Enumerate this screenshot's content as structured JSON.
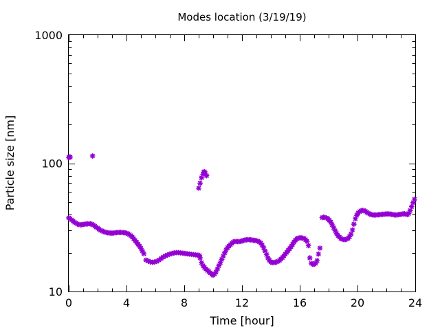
{
  "chart_data": {
    "type": "scatter",
    "title": "Modes location (3/19/19)",
    "xlabel": "Time [hour]",
    "ylabel": "Particle size [nm]",
    "xlim": [
      0,
      24
    ],
    "ylim": [
      10,
      1000
    ],
    "y_scale": "log",
    "grid": false,
    "marker_color": "#9400D3",
    "x_ticks": [
      0,
      4,
      8,
      12,
      16,
      20,
      24
    ],
    "y_ticks": [
      10,
      100,
      1000
    ],
    "x_tick_labels": [
      "0",
      "4",
      "8",
      "12",
      "16",
      "20",
      "24"
    ],
    "y_tick_labels": [
      "10",
      "100",
      "1000"
    ],
    "series": [
      {
        "points": [
          [
            0.0,
            37.5
          ],
          [
            0.1,
            37.0
          ],
          [
            0.2,
            36.2
          ],
          [
            0.3,
            35.4
          ],
          [
            0.4,
            34.7
          ],
          [
            0.5,
            34.2
          ],
          [
            0.6,
            33.6
          ],
          [
            0.7,
            33.3
          ],
          [
            0.8,
            33.1
          ],
          [
            0.9,
            33.2
          ],
          [
            1.0,
            33.4
          ],
          [
            1.1,
            33.5
          ],
          [
            1.2,
            33.6
          ],
          [
            1.3,
            33.7
          ],
          [
            1.4,
            33.8
          ],
          [
            1.5,
            33.7
          ],
          [
            1.6,
            33.5
          ],
          [
            1.7,
            33.0
          ],
          [
            1.8,
            32.4
          ],
          [
            1.9,
            31.8
          ],
          [
            2.0,
            31.2
          ],
          [
            2.1,
            30.6
          ],
          [
            2.2,
            30.1
          ],
          [
            2.3,
            29.7
          ],
          [
            2.4,
            29.4
          ],
          [
            2.5,
            29.1
          ],
          [
            2.6,
            28.9
          ],
          [
            2.7,
            28.7
          ],
          [
            2.8,
            28.6
          ],
          [
            2.9,
            28.6
          ],
          [
            3.0,
            28.5
          ],
          [
            3.1,
            28.6
          ],
          [
            3.2,
            28.7
          ],
          [
            3.3,
            28.8
          ],
          [
            3.4,
            28.9
          ],
          [
            3.5,
            28.9
          ],
          [
            3.6,
            28.9
          ],
          [
            3.7,
            28.9
          ],
          [
            3.8,
            28.8
          ],
          [
            3.9,
            28.7
          ],
          [
            4.0,
            28.5
          ],
          [
            4.1,
            28.2
          ],
          [
            4.2,
            27.8
          ],
          [
            4.3,
            27.3
          ],
          [
            4.4,
            26.6
          ],
          [
            4.5,
            25.8
          ],
          [
            4.6,
            25.0
          ],
          [
            4.7,
            24.2
          ],
          [
            4.8,
            23.4
          ],
          [
            4.9,
            22.6
          ],
          [
            5.0,
            21.7
          ],
          [
            5.1,
            20.7
          ],
          [
            5.2,
            19.7
          ],
          [
            5.35,
            17.6
          ],
          [
            5.5,
            17.3
          ],
          [
            5.65,
            17.0
          ],
          [
            5.8,
            16.9
          ],
          [
            5.95,
            17.0
          ],
          [
            6.1,
            17.2
          ],
          [
            6.25,
            17.6
          ],
          [
            6.4,
            18.1
          ],
          [
            6.55,
            18.6
          ],
          [
            6.7,
            19.0
          ],
          [
            6.85,
            19.3
          ],
          [
            7.0,
            19.6
          ],
          [
            7.15,
            19.8
          ],
          [
            7.3,
            20.0
          ],
          [
            7.45,
            20.1
          ],
          [
            7.6,
            20.1
          ],
          [
            7.75,
            20.0
          ],
          [
            7.9,
            19.9
          ],
          [
            8.05,
            19.8
          ],
          [
            8.2,
            19.7
          ],
          [
            8.35,
            19.6
          ],
          [
            8.5,
            19.5
          ],
          [
            8.65,
            19.4
          ],
          [
            8.8,
            19.3
          ],
          [
            8.95,
            19.2
          ],
          [
            9.05,
            19.1
          ],
          [
            9.1,
            18.3
          ],
          [
            9.2,
            16.8
          ],
          [
            9.3,
            15.9
          ],
          [
            9.4,
            15.4
          ],
          [
            9.5,
            15.0
          ],
          [
            9.6,
            14.6
          ],
          [
            9.7,
            14.3
          ],
          [
            9.8,
            14.0
          ],
          [
            9.9,
            13.6
          ],
          [
            10.0,
            13.4
          ],
          [
            10.1,
            13.7
          ],
          [
            10.2,
            14.2
          ],
          [
            10.3,
            15.0
          ],
          [
            10.4,
            15.9
          ],
          [
            10.5,
            16.8
          ],
          [
            10.6,
            17.8
          ],
          [
            10.7,
            18.9
          ],
          [
            10.8,
            20.0
          ],
          [
            10.9,
            21.1
          ],
          [
            11.0,
            22.0
          ],
          [
            11.1,
            22.6
          ],
          [
            11.2,
            23.2
          ],
          [
            11.3,
            23.8
          ],
          [
            11.4,
            24.3
          ],
          [
            11.5,
            24.6
          ],
          [
            11.6,
            24.6
          ],
          [
            11.7,
            24.5
          ],
          [
            11.8,
            24.5
          ],
          [
            11.9,
            24.6
          ],
          [
            12.0,
            24.8
          ],
          [
            12.1,
            25.0
          ],
          [
            12.2,
            25.2
          ],
          [
            12.3,
            25.3
          ],
          [
            12.4,
            25.4
          ],
          [
            12.5,
            25.4
          ],
          [
            12.6,
            25.3
          ],
          [
            12.7,
            25.2
          ],
          [
            12.8,
            25.1
          ],
          [
            12.9,
            25.0
          ],
          [
            13.0,
            24.9
          ],
          [
            13.1,
            24.7
          ],
          [
            13.2,
            24.4
          ],
          [
            13.3,
            23.9
          ],
          [
            13.4,
            23.0
          ],
          [
            13.5,
            21.9
          ],
          [
            13.6,
            20.7
          ],
          [
            13.7,
            19.4
          ],
          [
            13.8,
            18.3
          ],
          [
            13.9,
            17.5
          ],
          [
            14.0,
            17.0
          ],
          [
            14.1,
            16.8
          ],
          [
            14.2,
            16.8
          ],
          [
            14.3,
            16.9
          ],
          [
            14.4,
            17.0
          ],
          [
            14.5,
            17.2
          ],
          [
            14.6,
            17.5
          ],
          [
            14.7,
            17.9
          ],
          [
            14.8,
            18.4
          ],
          [
            14.9,
            19.0
          ],
          [
            15.0,
            19.6
          ],
          [
            15.1,
            20.2
          ],
          [
            15.2,
            20.9
          ],
          [
            15.3,
            21.6
          ],
          [
            15.4,
            22.4
          ],
          [
            15.5,
            23.3
          ],
          [
            15.6,
            24.3
          ],
          [
            15.7,
            25.2
          ],
          [
            15.8,
            25.8
          ],
          [
            15.9,
            26.1
          ],
          [
            16.0,
            26.2
          ],
          [
            16.1,
            26.2
          ],
          [
            16.2,
            26.1
          ],
          [
            16.3,
            25.9
          ],
          [
            16.4,
            25.4
          ],
          [
            16.5,
            24.6
          ],
          [
            16.6,
            22.8
          ],
          [
            16.7,
            18.3
          ],
          [
            16.8,
            16.6
          ],
          [
            16.9,
            16.3
          ],
          [
            17.0,
            16.3
          ],
          [
            17.1,
            16.6
          ],
          [
            17.2,
            17.4
          ],
          [
            17.3,
            19.6
          ],
          [
            17.4,
            21.8
          ],
          [
            17.55,
            37.7
          ],
          [
            17.65,
            38.0
          ],
          [
            17.75,
            37.8
          ],
          [
            17.85,
            37.5
          ],
          [
            17.95,
            36.9
          ],
          [
            18.05,
            36.0
          ],
          [
            18.15,
            34.7
          ],
          [
            18.25,
            33.1
          ],
          [
            18.35,
            31.4
          ],
          [
            18.45,
            29.8
          ],
          [
            18.55,
            28.4
          ],
          [
            18.65,
            27.3
          ],
          [
            18.75,
            26.5
          ],
          [
            18.85,
            25.9
          ],
          [
            18.95,
            25.6
          ],
          [
            19.05,
            25.4
          ],
          [
            19.15,
            25.4
          ],
          [
            19.25,
            25.6
          ],
          [
            19.35,
            26.0
          ],
          [
            19.45,
            26.8
          ],
          [
            19.55,
            28.1
          ],
          [
            19.65,
            30.2
          ],
          [
            19.75,
            33.5
          ],
          [
            19.85,
            36.9
          ],
          [
            19.95,
            39.3
          ],
          [
            20.05,
            41.0
          ],
          [
            20.15,
            42.0
          ],
          [
            20.25,
            42.6
          ],
          [
            20.35,
            43.0
          ],
          [
            20.45,
            42.8
          ],
          [
            20.55,
            42.2
          ],
          [
            20.65,
            41.5
          ],
          [
            20.75,
            40.8
          ],
          [
            20.85,
            40.2
          ],
          [
            20.95,
            39.8
          ],
          [
            21.05,
            39.6
          ],
          [
            21.15,
            39.5
          ],
          [
            21.25,
            39.5
          ],
          [
            21.35,
            39.6
          ],
          [
            21.45,
            39.7
          ],
          [
            21.55,
            39.8
          ],
          [
            21.65,
            39.9
          ],
          [
            21.75,
            40.0
          ],
          [
            21.85,
            40.1
          ],
          [
            21.95,
            40.2
          ],
          [
            22.05,
            40.3
          ],
          [
            22.15,
            40.3
          ],
          [
            22.25,
            40.2
          ],
          [
            22.35,
            40.0
          ],
          [
            22.45,
            39.8
          ],
          [
            22.55,
            39.6
          ],
          [
            22.65,
            39.5
          ],
          [
            22.75,
            39.6
          ],
          [
            22.85,
            39.8
          ],
          [
            22.95,
            40.0
          ],
          [
            23.05,
            40.1
          ],
          [
            23.15,
            40.3
          ],
          [
            23.25,
            40.5
          ],
          [
            23.35,
            40.0
          ],
          [
            23.45,
            39.8
          ],
          [
            23.55,
            40.6
          ],
          [
            23.65,
            42.8
          ],
          [
            23.75,
            45.9
          ],
          [
            23.85,
            49.3
          ],
          [
            23.95,
            52.5
          ],
          [
            0.0,
            111
          ],
          [
            0.05,
            112
          ],
          [
            0.1,
            112
          ],
          [
            1.65,
            114
          ],
          [
            9.0,
            64
          ],
          [
            9.1,
            70
          ],
          [
            9.2,
            77
          ],
          [
            9.3,
            82
          ],
          [
            9.35,
            85
          ],
          [
            9.4,
            86
          ],
          [
            9.45,
            84
          ],
          [
            9.55,
            80
          ]
        ]
      }
    ]
  }
}
